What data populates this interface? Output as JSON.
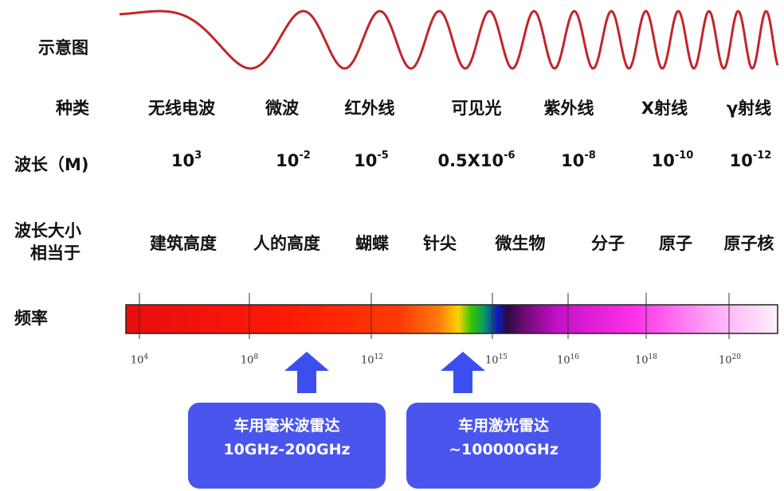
{
  "row_labels": {
    "diagram": "示意图",
    "type": "种类",
    "wavelength": "波长（M)",
    "size_line1": "波长大小",
    "size_line2": "相当于",
    "frequency": "频率"
  },
  "types": [
    "无线电波",
    "微波",
    "红外线",
    "可见光",
    "紫外线",
    "X射线",
    "γ射线"
  ],
  "wavelengths": [
    {
      "base": "10",
      "exp": "3"
    },
    {
      "base": "10",
      "exp": "-2"
    },
    {
      "base": "10",
      "exp": "-5"
    },
    {
      "base": "0.5X10",
      "exp": "-6"
    },
    {
      "base": "10",
      "exp": "-8"
    },
    {
      "base": "10",
      "exp": "-10"
    },
    {
      "base": "10",
      "exp": "-12"
    }
  ],
  "equivalents": [
    "建筑高度",
    "人的高度",
    "蝴蝶",
    "针尖",
    "微生物",
    "分子",
    "原子",
    "原子核"
  ],
  "frequency_ticks": [
    {
      "base": "10",
      "exp": "4"
    },
    {
      "base": "10",
      "exp": "8"
    },
    {
      "base": "10",
      "exp": "12"
    },
    {
      "base": "10",
      "exp": "15"
    },
    {
      "base": "10",
      "exp": "16"
    },
    {
      "base": "10",
      "exp": "18"
    },
    {
      "base": "10",
      "exp": "20"
    }
  ],
  "callouts": [
    {
      "line1": "车用毫米波雷达",
      "line2": "10GHz-200GHz"
    },
    {
      "line1": "车用激光雷达",
      "line2": "~100000GHz"
    }
  ],
  "colors": {
    "wave": "#c0262a",
    "callout_bg": "#4a55ee",
    "arrow": "#3d4ef0"
  }
}
